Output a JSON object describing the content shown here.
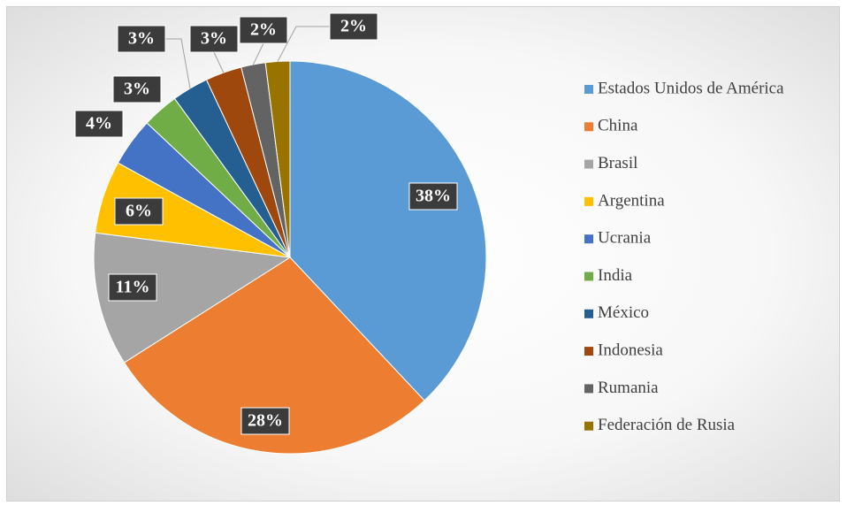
{
  "chart_data": {
    "type": "pie",
    "categories": [
      "Estados Unidos de América",
      "China",
      "Brasil",
      "Argentina",
      "Ucrania",
      "India",
      "México",
      "Indonesia",
      "Rumania",
      "Federación de Rusia"
    ],
    "values": [
      38,
      28,
      11,
      6,
      4,
      3,
      3,
      3,
      2,
      2
    ],
    "value_labels": [
      "38%",
      "28%",
      "11%",
      "6%",
      "4%",
      "3%",
      "3%",
      "3%",
      "2%",
      "2%"
    ],
    "colors": [
      "#5B9BD5",
      "#ED7D31",
      "#A5A5A5",
      "#FFC000",
      "#4472C4",
      "#70AD47",
      "#255E91",
      "#9E480E",
      "#636363",
      "#997300"
    ],
    "legend": "right"
  }
}
